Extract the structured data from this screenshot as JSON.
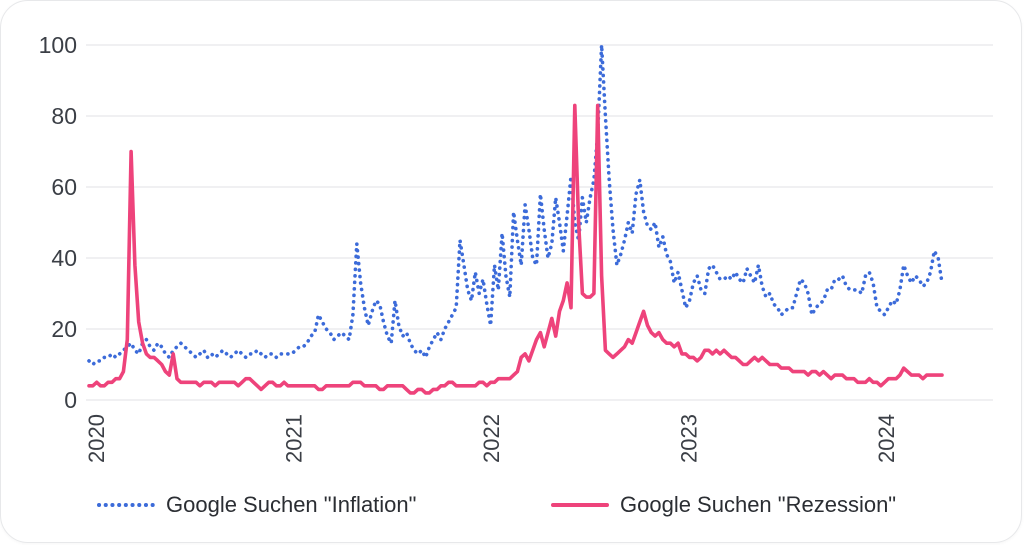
{
  "chart_data": {
    "type": "line",
    "title": "",
    "xlabel": "",
    "ylabel": "",
    "ylim": [
      0,
      100
    ],
    "grid": "horizontal-only",
    "legend_position": "bottom",
    "x_range_note": "weekly points, Jan 2020 to mid-April 2024",
    "axis": {
      "y_ticks": [
        0,
        20,
        40,
        60,
        80,
        100
      ],
      "x_tick_labels": [
        "2020",
        "2021",
        "2022",
        "2023",
        "2024"
      ],
      "tick_color": "#3b3f46",
      "grid_color": "#ececee"
    },
    "series": [
      {
        "name": "Google Suchen \"Inflation\"",
        "key": "inflation",
        "color": "#3c6bd9",
        "style": "dotted",
        "values": [
          11,
          10,
          11,
          11,
          12,
          12,
          13,
          12,
          13,
          14,
          15,
          16,
          14,
          13,
          16,
          17,
          15,
          14,
          16,
          15,
          13,
          12,
          14,
          15,
          16,
          15,
          14,
          13,
          12,
          13,
          14,
          12,
          13,
          12,
          13,
          14,
          13,
          12,
          13,
          14,
          13,
          12,
          13,
          13,
          14,
          13,
          12,
          13,
          13,
          12,
          13,
          13,
          13,
          13,
          14,
          15,
          15,
          16,
          18,
          19,
          24,
          22,
          20,
          19,
          17,
          18,
          19,
          18,
          17,
          24,
          44,
          33,
          26,
          21,
          25,
          28,
          27,
          22,
          18,
          16,
          28,
          21,
          18,
          19,
          16,
          14,
          13,
          14,
          12,
          15,
          17,
          19,
          17,
          20,
          22,
          24,
          26,
          45,
          38,
          31,
          28,
          36,
          30,
          34,
          27,
          21,
          38,
          31,
          47,
          35,
          29,
          53,
          45,
          38,
          55,
          48,
          40,
          38,
          58,
          48,
          40,
          44,
          57,
          50,
          42,
          52,
          63,
          50,
          45,
          57,
          50,
          57,
          62,
          75,
          100,
          80,
          62,
          48,
          38,
          41,
          45,
          50,
          47,
          58,
          62,
          53,
          49,
          48,
          50,
          43,
          46,
          41,
          39,
          33,
          36,
          31,
          26,
          28,
          33,
          35,
          31,
          30,
          37,
          38,
          36,
          34,
          34,
          35,
          34,
          36,
          34,
          33,
          37,
          35,
          33,
          38,
          32,
          29,
          30,
          27,
          26,
          24,
          25,
          26,
          26,
          30,
          34,
          33,
          30,
          24,
          26,
          27,
          28,
          31,
          31,
          34,
          34,
          35,
          32,
          31,
          31,
          31,
          30,
          35,
          36,
          33,
          26,
          25,
          24,
          26,
          28,
          27,
          31,
          38,
          35,
          33,
          35,
          34,
          32,
          33,
          36,
          42,
          40,
          33
        ]
      },
      {
        "name": "Google Suchen \"Rezession\"",
        "key": "rezession",
        "color": "#ee437b",
        "style": "solid",
        "values": [
          4,
          4,
          5,
          4,
          4,
          5,
          5,
          6,
          6,
          8,
          17,
          70,
          38,
          22,
          16,
          13,
          12,
          12,
          11,
          10,
          8,
          7,
          13,
          6,
          5,
          5,
          5,
          5,
          5,
          4,
          5,
          5,
          5,
          4,
          5,
          5,
          5,
          5,
          5,
          4,
          5,
          6,
          6,
          5,
          4,
          3,
          4,
          5,
          5,
          4,
          4,
          5,
          4,
          4,
          4,
          4,
          4,
          4,
          4,
          4,
          3,
          3,
          4,
          4,
          4,
          4,
          4,
          4,
          4,
          5,
          5,
          5,
          4,
          4,
          4,
          4,
          3,
          3,
          4,
          4,
          4,
          4,
          4,
          3,
          2,
          2,
          3,
          3,
          2,
          2,
          3,
          3,
          4,
          4,
          5,
          5,
          4,
          4,
          4,
          4,
          4,
          4,
          5,
          5,
          4,
          5,
          5,
          6,
          6,
          6,
          6,
          7,
          8,
          12,
          13,
          11,
          14,
          17,
          19,
          15,
          19,
          23,
          18,
          25,
          28,
          33,
          26,
          83,
          50,
          30,
          29,
          29,
          30,
          83,
          35,
          14,
          13,
          12,
          13,
          14,
          15,
          17,
          16,
          19,
          22,
          25,
          21,
          19,
          18,
          19,
          17,
          16,
          16,
          15,
          16,
          13,
          13,
          12,
          12,
          11,
          12,
          14,
          14,
          13,
          14,
          13,
          14,
          13,
          12,
          12,
          11,
          10,
          10,
          11,
          12,
          11,
          12,
          11,
          10,
          10,
          10,
          9,
          9,
          9,
          8,
          8,
          8,
          8,
          7,
          8,
          8,
          7,
          8,
          7,
          6,
          7,
          7,
          7,
          6,
          6,
          6,
          5,
          5,
          5,
          6,
          5,
          5,
          4,
          5,
          6,
          6,
          6,
          7,
          9,
          8,
          7,
          7,
          7,
          6,
          7,
          7,
          7,
          7,
          7
        ]
      }
    ]
  },
  "legend": {
    "items": [
      {
        "label": "Google Suchen \"Inflation\""
      },
      {
        "label": "Google Suchen \"Rezession\""
      }
    ]
  }
}
